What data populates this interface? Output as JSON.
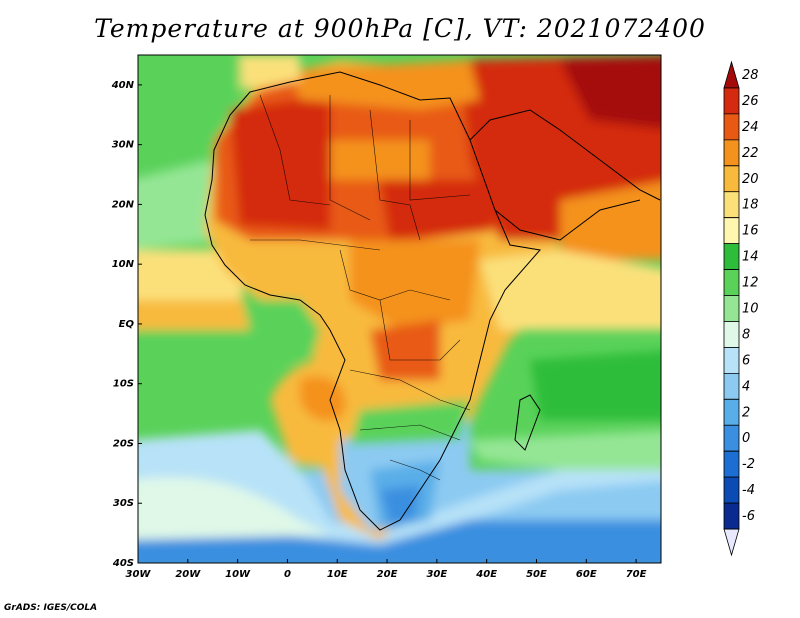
{
  "title": "Temperature at 900hPa [C], VT: 2021072400",
  "credit": "GrADS: IGES/COLA",
  "map": {
    "lon_range": [
      -30,
      75
    ],
    "lat_range": [
      -40,
      45
    ],
    "lon_ticks": [
      "30W",
      "20W",
      "10W",
      "0",
      "10E",
      "20E",
      "30E",
      "40E",
      "50E",
      "60E",
      "70E"
    ],
    "lat_ticks": [
      "40N",
      "30N",
      "20N",
      "10N",
      "EQ",
      "10S",
      "20S",
      "30S",
      "40S"
    ]
  },
  "colorbar": {
    "levels": [
      "28",
      "26",
      "24",
      "22",
      "20",
      "18",
      "16",
      "14",
      "12",
      "10",
      "8",
      "6",
      "4",
      "2",
      "0",
      "-2",
      "-4",
      "-6"
    ],
    "colors": [
      "#a50a0a",
      "#d42a10",
      "#e85a14",
      "#f4921e",
      "#f8ba3c",
      "#fbe07a",
      "#fff6b0",
      "#2ebd3a",
      "#5ad25a",
      "#94e694",
      "#dff8e8",
      "#b7e2f8",
      "#8ccaf2",
      "#5aaee8",
      "#3a8fe0",
      "#1c6ed2",
      "#0c4ab4",
      "#0a2a90",
      "#e8e8ff"
    ]
  }
}
